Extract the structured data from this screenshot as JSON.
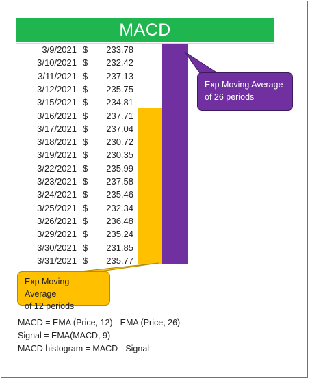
{
  "title": "MACD",
  "rows": [
    {
      "date": "3/9/2021",
      "currency": "$",
      "price": "233.78"
    },
    {
      "date": "3/10/2021",
      "currency": "$",
      "price": "232.42"
    },
    {
      "date": "3/11/2021",
      "currency": "$",
      "price": "237.13"
    },
    {
      "date": "3/12/2021",
      "currency": "$",
      "price": "235.75"
    },
    {
      "date": "3/15/2021",
      "currency": "$",
      "price": "234.81"
    },
    {
      "date": "3/16/2021",
      "currency": "$",
      "price": "237.71"
    },
    {
      "date": "3/17/2021",
      "currency": "$",
      "price": "237.04"
    },
    {
      "date": "3/18/2021",
      "currency": "$",
      "price": "230.72"
    },
    {
      "date": "3/19/2021",
      "currency": "$",
      "price": "230.35"
    },
    {
      "date": "3/22/2021",
      "currency": "$",
      "price": "235.99"
    },
    {
      "date": "3/23/2021",
      "currency": "$",
      "price": "237.58"
    },
    {
      "date": "3/24/2021",
      "currency": "$",
      "price": "235.46"
    },
    {
      "date": "3/25/2021",
      "currency": "$",
      "price": "232.34"
    },
    {
      "date": "3/26/2021",
      "currency": "$",
      "price": "236.48"
    },
    {
      "date": "3/29/2021",
      "currency": "$",
      "price": "235.24"
    },
    {
      "date": "3/30/2021",
      "currency": "$",
      "price": "231.85"
    },
    {
      "date": "3/31/2021",
      "currency": "$",
      "price": "235.77"
    }
  ],
  "callouts": {
    "ema26": {
      "line1": "Exp Moving Average",
      "line2": "of 26 periods"
    },
    "ema12": {
      "line1": "Exp Moving Average",
      "line2": "of 12 periods"
    }
  },
  "formulas": {
    "macd": "MACD = EMA (Price, 12) - EMA (Price, 26)",
    "signal": "Signal = EMA(MACD, 9)",
    "histogram": "MACD histogram = MACD - Signal"
  },
  "colors": {
    "title_bg": "#1fb54f",
    "ema12": "#ffc000",
    "ema26": "#7030a0",
    "frame": "#21a34a"
  }
}
